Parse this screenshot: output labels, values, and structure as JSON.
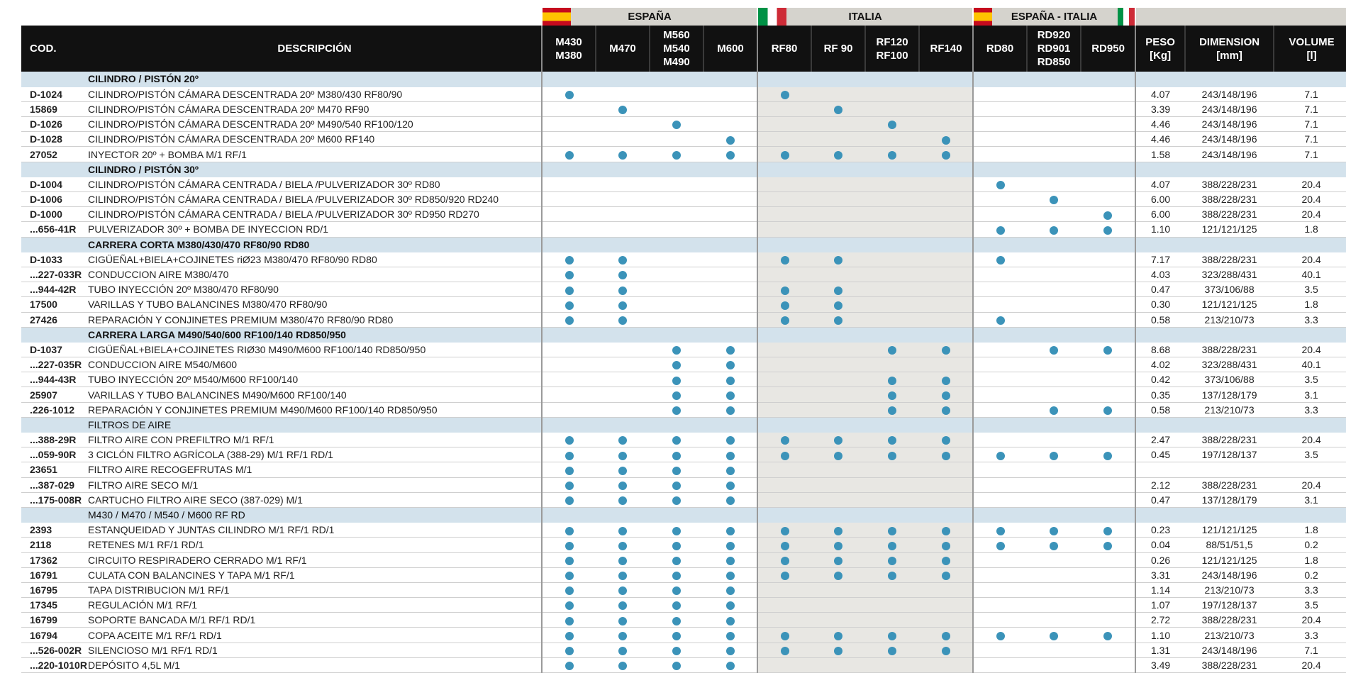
{
  "groups": [
    {
      "label": "ESPAÑA",
      "flag": "es"
    },
    {
      "label": "ITALIA",
      "flag": "it"
    },
    {
      "label": "ESPAÑA - ITALIA",
      "flag": "es-it"
    }
  ],
  "columns": {
    "cod": "COD.",
    "desc": "DESCRIPCIÓN",
    "models": [
      "M430\nM380",
      "M470",
      "M560\nM540\nM490",
      "M600",
      "RF80",
      "RF 90",
      "RF120\nRF100",
      "RF140",
      "RD80",
      "RD920\nRD901\nRD850",
      "RD950"
    ],
    "specs": [
      "PESO\n[Kg]",
      "DIMENSION\n[mm]",
      "VOLUME\n[l]"
    ]
  },
  "dot_color": "#3b93b9",
  "rows": [
    {
      "type": "section",
      "title": "CILINDRO / PISTÓN 20º",
      "bold": true
    },
    {
      "cod": "D-1024",
      "desc": "CILINDRO/PISTÓN CÁMARA DESCENTRADA 20º M380/430 RF80/90",
      "m": [
        1,
        0,
        0,
        0,
        1,
        0,
        0,
        0,
        0,
        0,
        0
      ],
      "peso": "4.07",
      "dim": "243/148/196",
      "vol": "7.1"
    },
    {
      "cod": "15869",
      "desc": "CILINDRO/PISTÓN CÁMARA DESCENTRADA 20º M470 RF90",
      "m": [
        0,
        1,
        0,
        0,
        0,
        1,
        0,
        0,
        0,
        0,
        0
      ],
      "peso": "3.39",
      "dim": "243/148/196",
      "vol": "7.1"
    },
    {
      "cod": "D-1026",
      "desc": "CILINDRO/PISTÓN CÁMARA DESCENTRADA 20º M490/540 RF100/120",
      "m": [
        0,
        0,
        1,
        0,
        0,
        0,
        1,
        0,
        0,
        0,
        0
      ],
      "peso": "4.46",
      "dim": "243/148/196",
      "vol": "7.1"
    },
    {
      "cod": "D-1028",
      "desc": "CILINDRO/PISTÓN CÁMARA DESCENTRADA 20º M600 RF140",
      "m": [
        0,
        0,
        0,
        1,
        0,
        0,
        0,
        1,
        0,
        0,
        0
      ],
      "peso": "4.46",
      "dim": "243/148/196",
      "vol": "7.1"
    },
    {
      "cod": "27052",
      "desc": "INYECTOR 20º + BOMBA M/1 RF/1",
      "m": [
        1,
        1,
        1,
        1,
        1,
        1,
        1,
        1,
        0,
        0,
        0
      ],
      "peso": "1.58",
      "dim": "243/148/196",
      "vol": "7.1"
    },
    {
      "type": "section",
      "title": "CILINDRO / PISTÓN 30º",
      "bold": true
    },
    {
      "cod": "D-1004",
      "desc": "CILINDRO/PISTÓN CÁMARA CENTRADA / BIELA /PULVERIZADOR 30º RD80",
      "m": [
        0,
        0,
        0,
        0,
        0,
        0,
        0,
        0,
        1,
        0,
        0
      ],
      "peso": "4.07",
      "dim": "388/228/231",
      "vol": "20.4"
    },
    {
      "cod": "D-1006",
      "desc": "CILINDRO/PISTÓN CÁMARA CENTRADA / BIELA /PULVERIZADOR 30º RD850/920 RD240",
      "m": [
        0,
        0,
        0,
        0,
        0,
        0,
        0,
        0,
        0,
        1,
        0
      ],
      "peso": "6.00",
      "dim": "388/228/231",
      "vol": "20.4"
    },
    {
      "cod": "D-1000",
      "desc": "CILINDRO/PISTÓN CÁMARA CENTRADA / BIELA /PULVERIZADOR 30º RD950 RD270",
      "m": [
        0,
        0,
        0,
        0,
        0,
        0,
        0,
        0,
        0,
        0,
        1
      ],
      "peso": "6.00",
      "dim": "388/228/231",
      "vol": "20.4"
    },
    {
      "cod": "...656-41R",
      "desc": "PULVERIZADOR 30º + BOMBA DE INYECCION RD/1",
      "m": [
        0,
        0,
        0,
        0,
        0,
        0,
        0,
        0,
        1,
        1,
        1
      ],
      "peso": "1.10",
      "dim": "121/121/125",
      "vol": "1.8"
    },
    {
      "type": "section",
      "title": "CARRERA CORTA M380/430/470 RF80/90 RD80",
      "bold": true
    },
    {
      "cod": "D-1033",
      "desc": "CIGÜEÑAL+BIELA+COJINETES riØ23 M380/470 RF80/90 RD80",
      "m": [
        1,
        1,
        0,
        0,
        1,
        1,
        0,
        0,
        1,
        0,
        0
      ],
      "peso": "7.17",
      "dim": "388/228/231",
      "vol": "20.4"
    },
    {
      "cod": "...227-033R",
      "desc": "CONDUCCION AIRE M380/470",
      "m": [
        1,
        1,
        0,
        0,
        0,
        0,
        0,
        0,
        0,
        0,
        0
      ],
      "peso": "4.03",
      "dim": "323/288/431",
      "vol": "40.1"
    },
    {
      "cod": "...944-42R",
      "desc": "TUBO INYECCIÓN 20º M380/470 RF80/90",
      "m": [
        1,
        1,
        0,
        0,
        1,
        1,
        0,
        0,
        0,
        0,
        0
      ],
      "peso": "0.47",
      "dim": "373/106/88",
      "vol": "3.5"
    },
    {
      "cod": "17500",
      "desc": "VARILLAS Y TUBO BALANCINES M380/470 RF80/90",
      "m": [
        1,
        1,
        0,
        0,
        1,
        1,
        0,
        0,
        0,
        0,
        0
      ],
      "peso": "0.30",
      "dim": "121/121/125",
      "vol": "1.8"
    },
    {
      "cod": "27426",
      "desc": "REPARACIÓN Y CONJINETES PREMIUM M380/470 RF80/90 RD80",
      "m": [
        1,
        1,
        0,
        0,
        1,
        1,
        0,
        0,
        1,
        0,
        0
      ],
      "peso": "0.58",
      "dim": "213/210/73",
      "vol": "3.3"
    },
    {
      "type": "section",
      "title": "CARRERA LARGA M490/540/600 RF100/140 RD850/950",
      "bold": true
    },
    {
      "cod": "D-1037",
      "desc": "CIGÜEÑAL+BIELA+COJINETES RIØ30 M490/M600 RF100/140 RD850/950",
      "m": [
        0,
        0,
        1,
        1,
        0,
        0,
        1,
        1,
        0,
        1,
        1
      ],
      "peso": "8.68",
      "dim": "388/228/231",
      "vol": "20.4"
    },
    {
      "cod": "...227-035R",
      "desc": "CONDUCCION AIRE M540/M600",
      "m": [
        0,
        0,
        1,
        1,
        0,
        0,
        0,
        0,
        0,
        0,
        0
      ],
      "peso": "4.02",
      "dim": "323/288/431",
      "vol": "40.1"
    },
    {
      "cod": "...944-43R",
      "desc": "TUBO INYECCIÓN 20º M540/M600 RF100/140",
      "m": [
        0,
        0,
        1,
        1,
        0,
        0,
        1,
        1,
        0,
        0,
        0
      ],
      "peso": "0.42",
      "dim": "373/106/88",
      "vol": "3.5"
    },
    {
      "cod": "25907",
      "desc": "VARILLAS Y TUBO BALANCINES M490/M600 RF100/140",
      "m": [
        0,
        0,
        1,
        1,
        0,
        0,
        1,
        1,
        0,
        0,
        0
      ],
      "peso": "0.35",
      "dim": "137/128/179",
      "vol": "3.1"
    },
    {
      "cod": ".226-1012",
      "desc": "REPARACIÓN Y CONJINETES PREMIUM M490/M600 RF100/140 RD850/950",
      "m": [
        0,
        0,
        1,
        1,
        0,
        0,
        1,
        1,
        0,
        1,
        1
      ],
      "peso": "0.58",
      "dim": "213/210/73",
      "vol": "3.3"
    },
    {
      "type": "section",
      "title": "FILTROS DE AIRE",
      "bold": false
    },
    {
      "cod": "...388-29R",
      "desc": "FILTRO AIRE CON PREFILTRO M/1 RF/1",
      "m": [
        1,
        1,
        1,
        1,
        1,
        1,
        1,
        1,
        0,
        0,
        0
      ],
      "peso": "2.47",
      "dim": "388/228/231",
      "vol": "20.4"
    },
    {
      "cod": "...059-90R",
      "desc": "3 CICLÓN FILTRO AGRÍCOLA (388-29) M/1 RF/1 RD/1",
      "m": [
        1,
        1,
        1,
        1,
        1,
        1,
        1,
        1,
        1,
        1,
        1
      ],
      "peso": "0.45",
      "dim": "197/128/137",
      "vol": "3.5"
    },
    {
      "cod": "23651",
      "desc": "FILTRO AIRE RECOGEFRUTAS M/1",
      "m": [
        1,
        1,
        1,
        1,
        0,
        0,
        0,
        0,
        0,
        0,
        0
      ],
      "peso": "",
      "dim": "",
      "vol": ""
    },
    {
      "cod": "...387-029",
      "desc": "FILTRO AIRE SECO M/1",
      "m": [
        1,
        1,
        1,
        1,
        0,
        0,
        0,
        0,
        0,
        0,
        0
      ],
      "peso": "2.12",
      "dim": "388/228/231",
      "vol": "20.4"
    },
    {
      "cod": "...175-008R",
      "desc": "CARTUCHO FILTRO AIRE SECO (387-029) M/1",
      "m": [
        1,
        1,
        1,
        1,
        0,
        0,
        0,
        0,
        0,
        0,
        0
      ],
      "peso": "0.47",
      "dim": "137/128/179",
      "vol": "3.1"
    },
    {
      "type": "section",
      "title": "M430 / M470 / M540 / M600 RF RD",
      "bold": false
    },
    {
      "cod": "2393",
      "desc": "ESTANQUEIDAD Y JUNTAS CILINDRO M/1 RF/1 RD/1",
      "m": [
        1,
        1,
        1,
        1,
        1,
        1,
        1,
        1,
        1,
        1,
        1
      ],
      "peso": "0.23",
      "dim": "121/121/125",
      "vol": "1.8"
    },
    {
      "cod": "2118",
      "desc": "RETENES M/1 RF/1 RD/1",
      "m": [
        1,
        1,
        1,
        1,
        1,
        1,
        1,
        1,
        1,
        1,
        1
      ],
      "peso": "0.04",
      "dim": "88/51/51,5",
      "vol": "0.2"
    },
    {
      "cod": "17362",
      "desc": "CIRCUITO RESPIRADERO CERRADO M/1 RF/1",
      "m": [
        1,
        1,
        1,
        1,
        1,
        1,
        1,
        1,
        0,
        0,
        0
      ],
      "peso": "0.26",
      "dim": "121/121/125",
      "vol": "1.8"
    },
    {
      "cod": "16791",
      "desc": "CULATA CON BALANCINES Y TAPA M/1 RF/1",
      "m": [
        1,
        1,
        1,
        1,
        1,
        1,
        1,
        1,
        0,
        0,
        0
      ],
      "peso": "3.31",
      "dim": "243/148/196",
      "vol": "0.2"
    },
    {
      "cod": "16795",
      "desc": "TAPA DISTRIBUCION M/1 RF/1",
      "m": [
        1,
        1,
        1,
        1,
        0,
        0,
        0,
        0,
        0,
        0,
        0
      ],
      "peso": "1.14",
      "dim": "213/210/73",
      "vol": "3.3"
    },
    {
      "cod": "17345",
      "desc": "REGULACIÓN M/1 RF/1",
      "m": [
        1,
        1,
        1,
        1,
        0,
        0,
        0,
        0,
        0,
        0,
        0
      ],
      "peso": "1.07",
      "dim": "197/128/137",
      "vol": "3.5"
    },
    {
      "cod": "16799",
      "desc": "SOPORTE BANCADA M/1 RF/1 RD/1",
      "m": [
        1,
        1,
        1,
        1,
        0,
        0,
        0,
        0,
        0,
        0,
        0
      ],
      "peso": "2.72",
      "dim": "388/228/231",
      "vol": "20.4"
    },
    {
      "cod": "16794",
      "desc": "COPA ACEITE M/1 RF/1 RD/1",
      "m": [
        1,
        1,
        1,
        1,
        1,
        1,
        1,
        1,
        1,
        1,
        1
      ],
      "peso": "1.10",
      "dim": "213/210/73",
      "vol": "3.3"
    },
    {
      "cod": "...526-002R",
      "desc": "SILENCIOSO M/1 RF/1 RD/1",
      "m": [
        1,
        1,
        1,
        1,
        1,
        1,
        1,
        1,
        0,
        0,
        0
      ],
      "peso": "1.31",
      "dim": "243/148/196",
      "vol": "7.1"
    },
    {
      "cod": "...220-1010R",
      "desc": "DEPÓSITO 4,5L M/1",
      "m": [
        1,
        1,
        1,
        1,
        0,
        0,
        0,
        0,
        0,
        0,
        0
      ],
      "peso": "3.49",
      "dim": "388/228/231",
      "vol": "20.4"
    }
  ]
}
